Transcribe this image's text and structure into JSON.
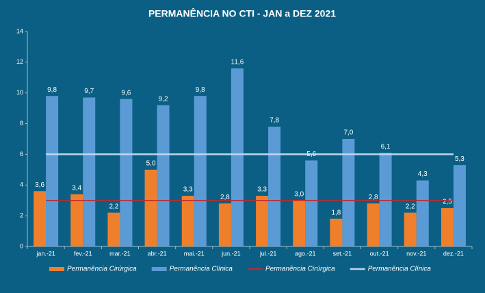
{
  "chart_data": {
    "type": "bar",
    "title": "PERMANÊNCIA NO CTI - JAN a DEZ 2021",
    "categories": [
      "jan.-21",
      "fev.-21",
      "mar.-21",
      "abr.-21",
      "mai.-21",
      "jun.-21",
      "jul.-21",
      "ago.-21",
      "set.-21",
      "out.-21",
      "nov.-21",
      "dez.-21"
    ],
    "series": [
      {
        "name": "Permanência Cirúrgica",
        "type": "bar",
        "color": "#f07f2c",
        "values": [
          3.6,
          3.4,
          2.2,
          5.0,
          3.3,
          2.8,
          3.3,
          3.0,
          1.8,
          2.8,
          2.2,
          2.5
        ],
        "value_labels": [
          "3,6",
          "3,4",
          "2,2",
          "5,0",
          "3,3",
          "2,8",
          "3,3",
          "3,0",
          "1,8",
          "2,8",
          "2,2",
          "2,5"
        ]
      },
      {
        "name": "Permanência Clínica",
        "type": "bar",
        "color": "#5b9bd5",
        "values": [
          9.8,
          9.7,
          9.6,
          9.2,
          9.8,
          11.6,
          7.8,
          5.6,
          7.0,
          6.1,
          4.3,
          5.3
        ],
        "value_labels": [
          "9,8",
          "9,7",
          "9,6",
          "9,2",
          "9,8",
          "11,6",
          "7,8",
          "5,6",
          "7,0",
          "6,1",
          "4,3",
          "5,3"
        ]
      },
      {
        "name": "Permanência Cirúrgica",
        "type": "line",
        "color": "#c0272d",
        "values": [
          3,
          3,
          3,
          3,
          3,
          3,
          3,
          3,
          3,
          3,
          3,
          3
        ]
      },
      {
        "name": "Permanência Clínica",
        "type": "line",
        "color": "#bdd7ee",
        "values": [
          6,
          6,
          6,
          6,
          6,
          6,
          6,
          6,
          6,
          6,
          6,
          6
        ]
      }
    ],
    "ylim": [
      0,
      14
    ],
    "yticks": [
      0,
      2,
      4,
      6,
      8,
      10,
      12,
      14
    ],
    "legend": "bottom"
  }
}
